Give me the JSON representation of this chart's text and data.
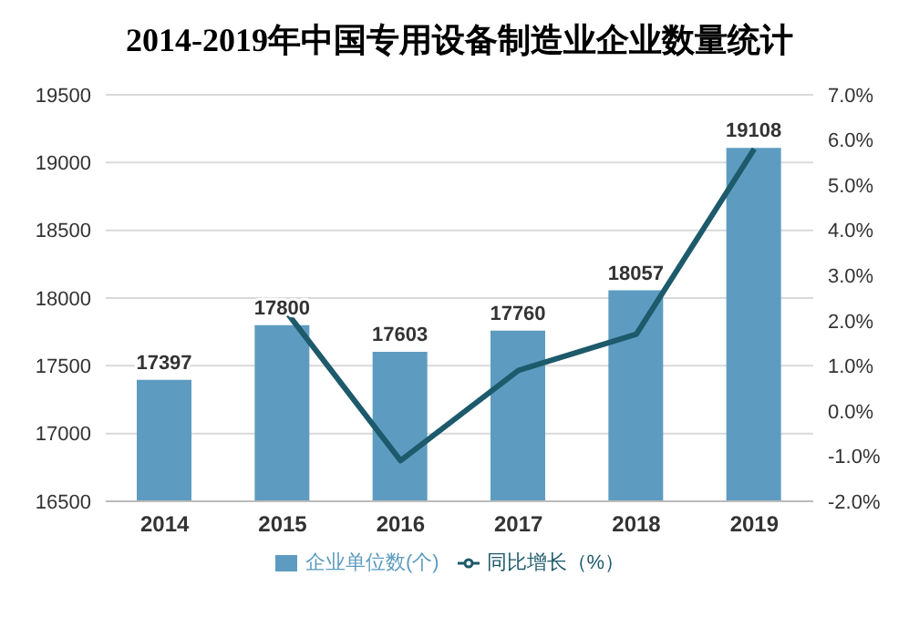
{
  "chart_data": {
    "type": "bar",
    "title": "2014-2019年中国专用设备制造业企业数量统计",
    "categories": [
      "2014",
      "2015",
      "2016",
      "2017",
      "2018",
      "2019"
    ],
    "series": [
      {
        "name": "企业单位数(个)",
        "color": "#5d9cc0",
        "values": [
          17397,
          17800,
          17603,
          17760,
          18057,
          19108
        ],
        "value_labels": [
          "17397",
          "17800",
          "17603",
          "17760",
          "18057",
          "19108"
        ]
      },
      {
        "name": "同比增长（%）",
        "type": "line",
        "axis": "y2",
        "color": "#1d5a6b",
        "values": [
          null,
          2.3,
          -1.1,
          0.9,
          1.7,
          5.8
        ]
      }
    ],
    "ylim": [
      16500,
      19500
    ],
    "yticks": [
      16500,
      17000,
      17500,
      18000,
      18500,
      19000,
      19500
    ],
    "y2lim": [
      -2,
      7
    ],
    "y2ticks": [
      {
        "value": -2,
        "label": "-2.0%"
      },
      {
        "value": -1,
        "label": "-1.0%"
      },
      {
        "value": 0,
        "label": "0.0%"
      },
      {
        "value": 1,
        "label": "1.0%"
      },
      {
        "value": 2,
        "label": "2.0%"
      },
      {
        "value": 3,
        "label": "3.0%"
      },
      {
        "value": 4,
        "label": "4.0%"
      },
      {
        "value": 5,
        "label": "5.0%"
      },
      {
        "value": 6,
        "label": "6.0%"
      },
      {
        "value": 7,
        "label": "7.0%"
      }
    ],
    "grid": "y",
    "legend": "bottom",
    "marker": "none"
  }
}
